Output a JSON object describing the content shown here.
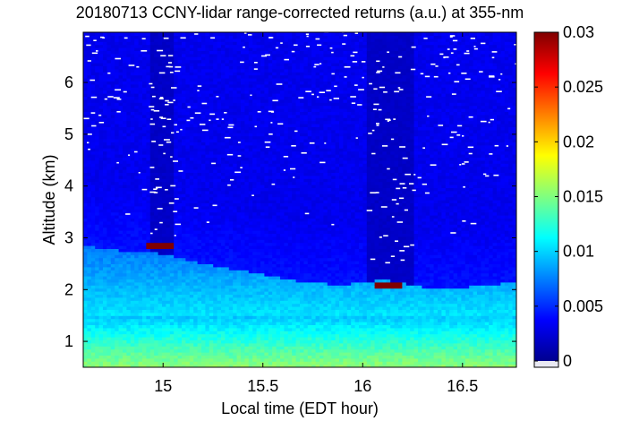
{
  "chart_data": {
    "type": "heatmap",
    "title": "20180713 CCNY-lidar range-corrected returns (a.u.) at 355-nm",
    "xlabel": "Local time (EDT hour)",
    "ylabel": "Altitude (km)",
    "xlim": [
      14.6,
      16.77
    ],
    "ylim": [
      0.5,
      6.97
    ],
    "xticks": [
      "15",
      "15.5",
      "16",
      "16.5"
    ],
    "xtick_values": [
      15,
      15.5,
      16,
      16.5
    ],
    "yticks": [
      "1",
      "2",
      "3",
      "4",
      "5",
      "6"
    ],
    "ytick_values": [
      1,
      2,
      3,
      4,
      5,
      6
    ],
    "colorbar": {
      "ticks": [
        "0",
        "0.005",
        "0.01",
        "0.015",
        "0.02",
        "0.025",
        "0.03"
      ],
      "tick_values": [
        0,
        0.005,
        0.01,
        0.015,
        0.02,
        0.025,
        0.03
      ],
      "range": [
        0,
        0.03
      ],
      "colormap": "jet"
    },
    "features": {
      "boundary_layer_top_km": [
        [
          14.6,
          2.85
        ],
        [
          14.8,
          2.75
        ],
        [
          15.0,
          2.7
        ],
        [
          15.2,
          2.5
        ],
        [
          15.5,
          2.3
        ],
        [
          15.7,
          2.15
        ],
        [
          15.9,
          2.1
        ],
        [
          16.1,
          2.2
        ],
        [
          16.3,
          2.05
        ],
        [
          16.5,
          2.05
        ],
        [
          16.77,
          2.15
        ]
      ],
      "surface_layer_top_km": 1.5,
      "clouds": [
        {
          "time": 14.99,
          "base_km": 2.85,
          "value": 0.03
        },
        {
          "time": 16.13,
          "base_km": 2.1,
          "value": 0.03
        }
      ],
      "column_gaps_above_cloud": [
        {
          "time_start": 14.93,
          "time_end": 15.06
        },
        {
          "time_start": 16.02,
          "time_end": 16.25
        }
      ]
    }
  }
}
